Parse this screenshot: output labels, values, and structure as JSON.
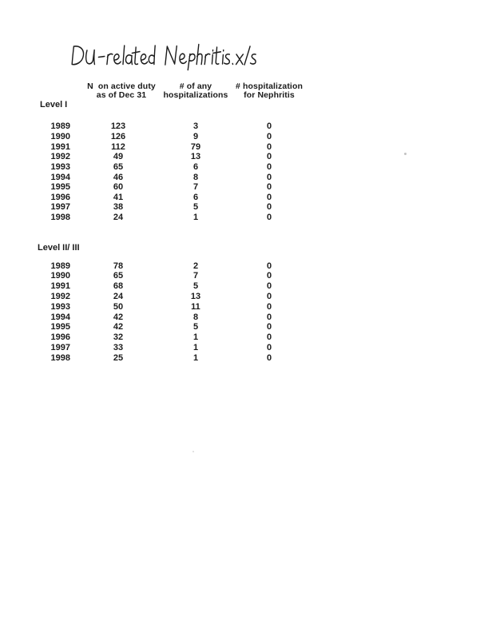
{
  "document": {
    "handwritten_title": "DU-related Nephritis.xls"
  },
  "table": {
    "columns": {
      "n_active": "N  on active duty\nas of Dec 31",
      "any_hosp": "# of any\nhospitalizations",
      "nephritis_hosp": "# hospitalization\nfor Nephritis"
    },
    "sections": [
      {
        "label": "Level I",
        "rows": [
          [
            "1989",
            "123",
            "3",
            "0"
          ],
          [
            "1990",
            "126",
            "9",
            "0"
          ],
          [
            "1991",
            "112",
            "79",
            "0"
          ],
          [
            "1992",
            "49",
            "13",
            "0"
          ],
          [
            "1993",
            "65",
            "6",
            "0"
          ],
          [
            "1994",
            "46",
            "8",
            "0"
          ],
          [
            "1995",
            "60",
            "7",
            "0"
          ],
          [
            "1996",
            "41",
            "6",
            "0"
          ],
          [
            "1997",
            "38",
            "5",
            "0"
          ],
          [
            "1998",
            "24",
            "1",
            "0"
          ]
        ]
      },
      {
        "label": "Level II/ III",
        "rows": [
          [
            "1989",
            "78",
            "2",
            "0"
          ],
          [
            "1990",
            "65",
            "7",
            "0"
          ],
          [
            "1991",
            "68",
            "5",
            "0"
          ],
          [
            "1992",
            "24",
            "13",
            "0"
          ],
          [
            "1993",
            "50",
            "11",
            "0"
          ],
          [
            "1994",
            "42",
            "8",
            "0"
          ],
          [
            "1995",
            "42",
            "5",
            "0"
          ],
          [
            "1996",
            "32",
            "1",
            "0"
          ],
          [
            "1997",
            "33",
            "1",
            "0"
          ],
          [
            "1998",
            "25",
            "1",
            "0"
          ]
        ]
      }
    ]
  },
  "colors": {
    "ink": "#1b1b1b",
    "paper": "#ffffff"
  }
}
